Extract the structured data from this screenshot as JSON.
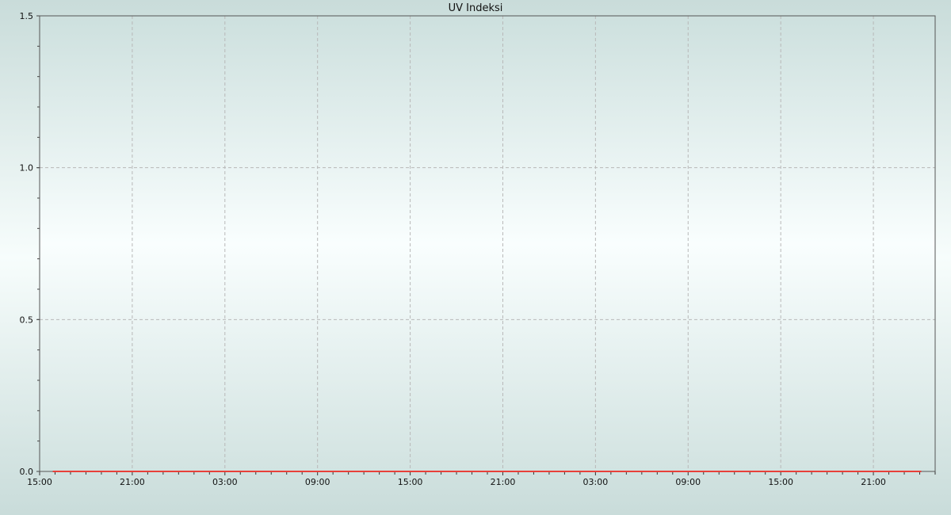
{
  "chart_data": {
    "type": "line",
    "title": "UV Indeksi",
    "xlabel": "",
    "ylabel": "",
    "xlim": [
      "15:00",
      "01:00"
    ],
    "x_span_hours": 58,
    "ylim": [
      0,
      1.5
    ],
    "x_tick_labels": [
      "15:00",
      "21:00",
      "03:00",
      "09:00",
      "15:00",
      "21:00",
      "03:00",
      "09:00",
      "15:00",
      "21:00"
    ],
    "y_tick_labels": [
      "0.0",
      "0.5",
      "1.0",
      "1.5"
    ],
    "grid": true,
    "series": [
      {
        "color": "#e8403a",
        "x": [
          "15:50",
          "00:05"
        ],
        "x_hours_from_start": [
          0.85,
          57.1
        ],
        "values": [
          0,
          0
        ]
      }
    ]
  }
}
